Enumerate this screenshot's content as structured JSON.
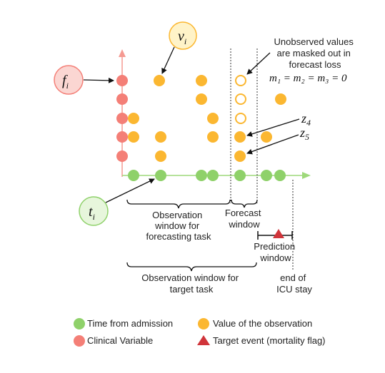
{
  "labels": {
    "v": "v",
    "v_sub": "i",
    "f": "f",
    "f_sub": "i",
    "t": "t",
    "t_sub": "i",
    "z4": "z",
    "z4_sub": "4",
    "z5": "z",
    "z5_sub": "5",
    "unobserved_line1": "Unobserved values",
    "unobserved_line2": "are masked out in",
    "unobserved_line3": "forecast loss",
    "equation": "m₁ = m₂ = m₃ = 0",
    "obs_window_line1": "Observation",
    "obs_window_line2": "window for",
    "obs_window_line3": "forecasting task",
    "forecast_window_line1": "Forecast",
    "forecast_window_line2": "window",
    "prediction_window_line1": "Prediction",
    "prediction_window_line2": "window",
    "target_obs_line1": "Observation window for",
    "target_obs_line2": "target task",
    "icu_line1": "end of",
    "icu_line2": "ICU stay"
  },
  "legend": {
    "time": "Time from admission",
    "clinical": "Clinical Variable",
    "value": "Value of the observation",
    "target": "Target event (mortality flag)"
  },
  "colors": {
    "time": "#8fd16a",
    "clinical": "#f47f77",
    "value": "#fbb731",
    "target": "#d0343a",
    "axis_x": "#9ed97a",
    "axis_y": "#f59a92"
  }
}
